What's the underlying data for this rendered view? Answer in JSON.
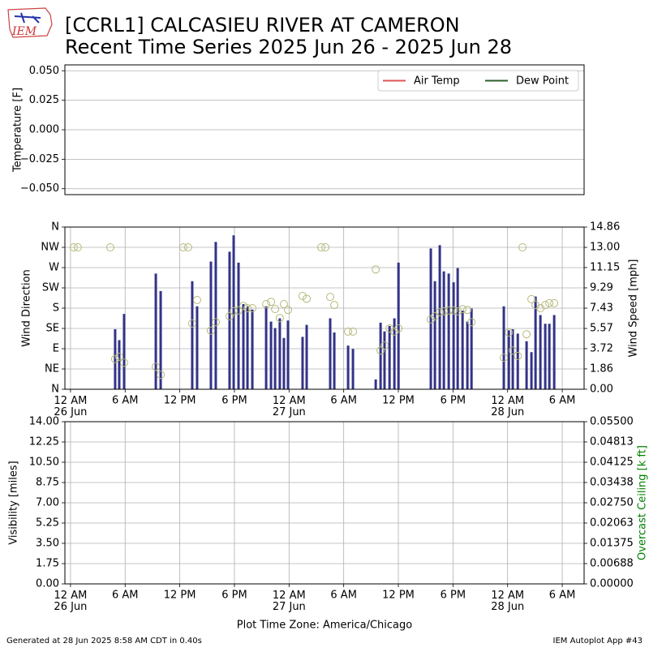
{
  "title": "[CCRL1] CALCASIEU RIVER AT CAMERON",
  "subtitle": "Recent Time Series 2025 Jun 26 - 2025 Jun 28",
  "logo_text": "IEM",
  "footer_left": "Generated at 28 Jun 2025 8:58 AM CDT in 0.40s",
  "footer_right": "IEM Autoplot App #43",
  "chart_data": [
    {
      "type": "line",
      "ylabel": "Temperature [F]",
      "ylim": [
        -0.055,
        0.055
      ],
      "yticks": [
        {
          "value": -0.05,
          "label": "−0.050"
        },
        {
          "value": -0.025,
          "label": "−0.025"
        },
        {
          "value": 0,
          "label": "0.000"
        },
        {
          "value": 0.025,
          "label": "0.025"
        },
        {
          "value": 0.05,
          "label": "0.050"
        }
      ],
      "grid": true,
      "legend": "upper right",
      "x": [],
      "series": [
        {
          "name": "Air Temp",
          "color": "#dd5555",
          "values": []
        },
        {
          "name": "Dew Point",
          "color": "#2d5f2d",
          "values": []
        }
      ]
    },
    {
      "type": "combo",
      "ylabel": "Wind Direction",
      "y2label": "Wind Speed [mph]",
      "grid": true,
      "xlim": [
        "2025-06-25T23:23",
        "2025-06-28T08:24"
      ],
      "xticks": [
        {
          "value": "2025-06-26T00:00",
          "label": "12 AM\n26 Jun"
        },
        {
          "value": "2025-06-26T06:00",
          "label": "6 AM"
        },
        {
          "value": "2025-06-26T12:00",
          "label": "12 PM"
        },
        {
          "value": "2025-06-26T18:00",
          "label": "6 PM"
        },
        {
          "value": "2025-06-27T00:00",
          "label": "12 AM\n27 Jun"
        },
        {
          "value": "2025-06-27T06:00",
          "label": "6 AM"
        },
        {
          "value": "2025-06-27T12:00",
          "label": "12 PM"
        },
        {
          "value": "2025-06-27T18:00",
          "label": "6 PM"
        },
        {
          "value": "2025-06-28T00:00",
          "label": "12 AM\n28 Jun"
        },
        {
          "value": "2025-06-28T06:00",
          "label": "6 AM"
        }
      ],
      "ylim": [
        0,
        360
      ],
      "yticks": [
        {
          "value": 0,
          "label": "N"
        },
        {
          "value": 45,
          "label": "NE"
        },
        {
          "value": 90,
          "label": "E"
        },
        {
          "value": 135,
          "label": "SE"
        },
        {
          "value": 180,
          "label": "S"
        },
        {
          "value": 225,
          "label": "SW"
        },
        {
          "value": 270,
          "label": "W"
        },
        {
          "value": 315,
          "label": "NW"
        },
        {
          "value": 360,
          "label": "N"
        }
      ],
      "y2lim": [
        0,
        14.86
      ],
      "y2ticks": [
        {
          "value": 0,
          "label": "0.00"
        },
        1.86,
        3.72,
        5.57,
        7.43,
        9.29,
        11.15,
        {
          "value": 13,
          "label": "13.00"
        },
        14.86
      ],
      "x": [
        "2025-06-26T00:21",
        "2025-06-26T00:48",
        "2025-06-26T04:22",
        "2025-06-26T04:54",
        "2025-06-26T05:21",
        "2025-06-26T05:53",
        "2025-06-26T09:22",
        "2025-06-26T09:54",
        "2025-06-26T12:23",
        "2025-06-26T12:55",
        "2025-06-26T13:22",
        "2025-06-26T13:54",
        "2025-06-26T15:25",
        "2025-06-26T15:57",
        "2025-06-26T17:28",
        "2025-06-26T17:55",
        "2025-06-26T18:27",
        "2025-06-26T18:59",
        "2025-06-26T19:26",
        "2025-06-26T19:58",
        "2025-06-26T21:29",
        "2025-06-26T22:01",
        "2025-06-26T22:28",
        "2025-06-26T22:59",
        "2025-06-26T23:26",
        "2025-06-26T23:53",
        "2025-06-27T01:29",
        "2025-06-27T01:56",
        "2025-06-27T03:32",
        "2025-06-27T03:59",
        "2025-06-27T04:31",
        "2025-06-27T04:58",
        "2025-06-27T06:29",
        "2025-06-27T07:01",
        "2025-06-27T09:31",
        "2025-06-27T10:03",
        "2025-06-27T10:29",
        "2025-06-27T11:02",
        "2025-06-27T11:34",
        "2025-06-27T12:01",
        "2025-06-27T15:34",
        "2025-06-27T16:01",
        "2025-06-27T16:33",
        "2025-06-27T17:00",
        "2025-06-27T17:32",
        "2025-06-27T18:04",
        "2025-06-27T18:31",
        "2025-06-27T19:03",
        "2025-06-27T19:35",
        "2025-06-27T20:02",
        "2025-06-27T23:35",
        "2025-06-28T00:08",
        "2025-06-28T00:34",
        "2025-06-28T01:07",
        "2025-06-28T01:38",
        "2025-06-28T02:05",
        "2025-06-28T02:37",
        "2025-06-28T03:04",
        "2025-06-28T03:36",
        "2025-06-28T04:08",
        "2025-06-28T04:35",
        "2025-06-28T05:07"
      ],
      "series": [
        {
          "type": "bar",
          "axis": "y2",
          "color": "#333388",
          "values": [
            null,
            null,
            null,
            5.5,
            4.5,
            6.9,
            10.6,
            9.0,
            null,
            null,
            9.9,
            7.6,
            11.7,
            13.5,
            12.6,
            14.1,
            11.6,
            7.8,
            7.6,
            7.3,
            7.6,
            6.2,
            5.6,
            6.5,
            4.7,
            6.3,
            4.8,
            5.9,
            null,
            null,
            6.5,
            5.2,
            4.0,
            3.7,
            0.9,
            6.1,
            5.3,
            5.8,
            6.5,
            11.6,
            12.9,
            9.9,
            13.2,
            10.8,
            10.6,
            9.8,
            11.1,
            7.2,
            6.2,
            7.4,
            7.6,
            5.4,
            5.5,
            5.1,
            null,
            4.4,
            3.4,
            8.5,
            6.8,
            6.0,
            6.0,
            6.8
          ]
        },
        {
          "type": "scatter",
          "axis": "y",
          "color": "#b5b87a",
          "values": [
            315,
            315,
            315,
            67,
            72,
            59,
            50,
            32,
            315,
            315,
            146,
            198,
            130,
            149,
            162,
            173,
            175,
            185,
            180,
            180,
            189,
            194,
            178,
            158,
            189,
            176,
            207,
            201,
            315,
            315,
            205,
            187,
            128,
            128,
            266,
            86,
            97,
            135,
            128,
            135,
            155,
            162,
            171,
            173,
            175,
            175,
            173,
            178,
            176,
            149,
            70,
            126,
            86,
            74,
            315,
            122,
            200,
            187,
            180,
            187,
            191,
            191
          ]
        }
      ]
    },
    {
      "type": "line",
      "ylabel": "Visibility [miles]",
      "y2label": "Overcast Ceiling [k ft]",
      "y2label_color": "#008000",
      "grid": true,
      "xlabel": "Plot Time Zone: America/Chicago",
      "xlim": [
        "2025-06-25T23:23",
        "2025-06-28T08:24"
      ],
      "xticks": [
        {
          "value": "2025-06-26T00:00",
          "label": "12 AM\n26 Jun"
        },
        {
          "value": "2025-06-26T06:00",
          "label": "6 AM"
        },
        {
          "value": "2025-06-26T12:00",
          "label": "12 PM"
        },
        {
          "value": "2025-06-26T18:00",
          "label": "6 PM"
        },
        {
          "value": "2025-06-27T00:00",
          "label": "12 AM\n27 Jun"
        },
        {
          "value": "2025-06-27T06:00",
          "label": "6 AM"
        },
        {
          "value": "2025-06-27T12:00",
          "label": "12 PM"
        },
        {
          "value": "2025-06-27T18:00",
          "label": "6 PM"
        },
        {
          "value": "2025-06-28T00:00",
          "label": "12 AM\n28 Jun"
        },
        {
          "value": "2025-06-28T06:00",
          "label": "6 AM"
        }
      ],
      "ylim": [
        0,
        14
      ],
      "yticks": [
        {
          "value": 0,
          "label": "0.00"
        },
        1.75,
        {
          "value": 3.5,
          "label": "3.50"
        },
        5.25,
        {
          "value": 7,
          "label": "7.00"
        },
        8.75,
        {
          "value": 10.5,
          "label": "10.50"
        },
        12.25,
        {
          "value": 14,
          "label": "14.00"
        }
      ],
      "y2lim": [
        0,
        0.055
      ],
      "y2ticks": [
        {
          "value": 0,
          "label": "0.00000"
        },
        {
          "value": 0.00688,
          "label": "0.00688"
        },
        {
          "value": 0.01375,
          "label": "0.01375"
        },
        {
          "value": 0.02063,
          "label": "0.02063"
        },
        {
          "value": 0.0275,
          "label": "0.02750"
        },
        {
          "value": 0.03438,
          "label": "0.03438"
        },
        {
          "value": 0.04125,
          "label": "0.04125"
        },
        {
          "value": 0.04813,
          "label": "0.04813"
        },
        {
          "value": 0.055,
          "label": "0.05500"
        }
      ],
      "x": [],
      "series": []
    }
  ]
}
